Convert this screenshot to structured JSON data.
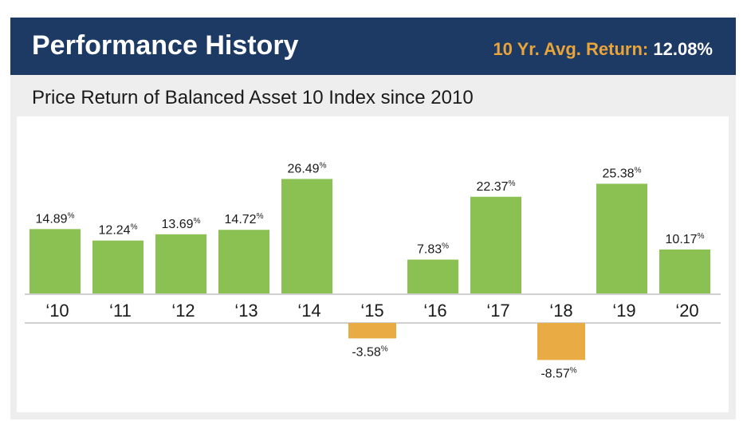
{
  "header": {
    "title": "Performance History",
    "avg_return_label": "10 Yr. Avg. Return:",
    "avg_return_value": "12.08%"
  },
  "colors": {
    "header_bg": "#1d3a64",
    "accent": "#e9a43a",
    "positive_bar": "#8bc152",
    "negative_bar": "#e9ac44"
  },
  "chart_data": {
    "type": "bar",
    "title": "Price Return of Balanced Asset 10 Index since 2010",
    "categories": [
      "‘10",
      "‘11",
      "‘12",
      "‘13",
      "‘14",
      "‘15",
      "‘16",
      "‘17",
      "‘18",
      "‘19",
      "‘20"
    ],
    "values": [
      14.89,
      12.24,
      13.69,
      14.72,
      26.49,
      -3.58,
      7.83,
      22.37,
      -8.57,
      25.38,
      10.17
    ],
    "value_labels": [
      "14.89",
      "12.24",
      "13.69",
      "14.72",
      "26.49",
      "-3.58",
      "7.83",
      "22.37",
      "-8.57",
      "25.38",
      "10.17"
    ],
    "value_unit": "%",
    "xlabel": "",
    "ylabel": ""
  }
}
